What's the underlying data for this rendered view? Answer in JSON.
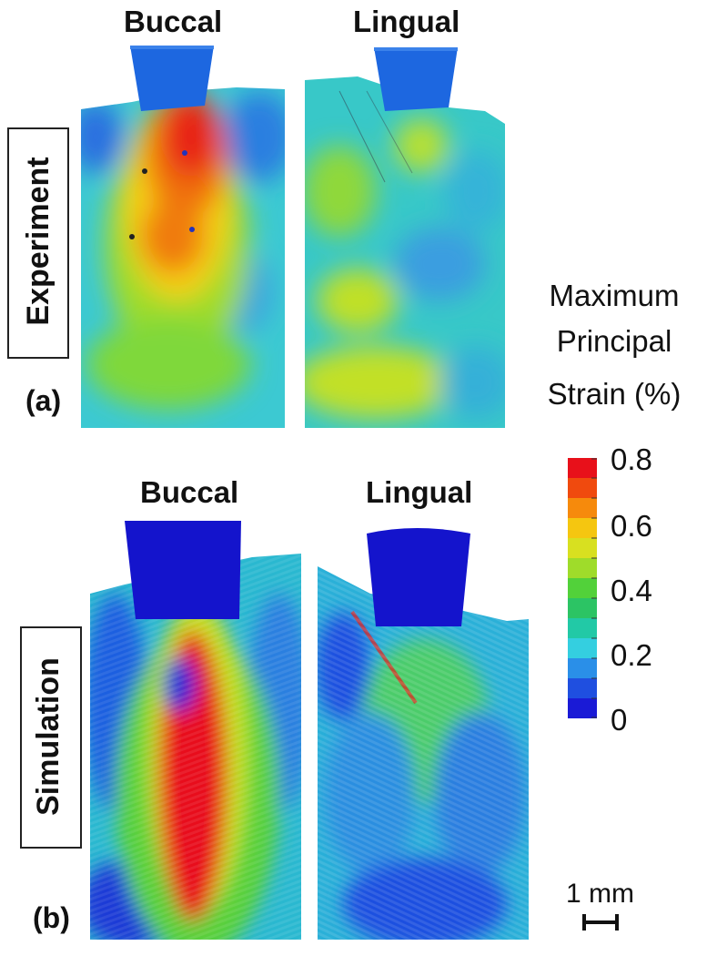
{
  "columns": {
    "buccal": "Buccal",
    "lingual": "Lingual"
  },
  "rows": {
    "experiment": {
      "label": "Experiment",
      "panel": "(a)"
    },
    "simulation": {
      "label": "Simulation",
      "panel": "(b)"
    }
  },
  "legend": {
    "title_lines": [
      "Maximum",
      "Principal",
      "Strain (%)"
    ],
    "ticks": [
      "0.8",
      "0.6",
      "0.4",
      "0.2",
      "0"
    ],
    "scale_min": 0,
    "scale_max": 0.8,
    "colors": [
      "#e8101a",
      "#f04a0e",
      "#f68a0c",
      "#f5c610",
      "#d8e020",
      "#9fdc2a",
      "#52d13a",
      "#2cc464",
      "#22c9a6",
      "#34cfe0",
      "#2a8fe8",
      "#1f4fe0",
      "#1a1ad6"
    ]
  },
  "scale_bar": {
    "label": "1 mm"
  },
  "colors": {
    "indenter": "#1d4fd6",
    "indenter_sim": "#1414cc",
    "background": "#ffffff"
  }
}
